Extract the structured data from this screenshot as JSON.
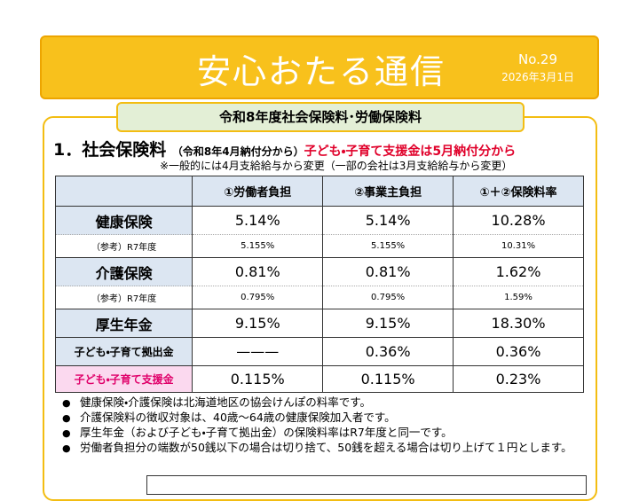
{
  "header": {
    "title": "安心おたる通信",
    "number": "No.29",
    "date": "2026年3月1日"
  },
  "section": {
    "title": "令和8年度社会保険料･労働保険料"
  },
  "heading": {
    "number": "1．",
    "title": "社会保険料",
    "period": "（令和8年4月納付分から）",
    "notice": "子ども・子育て支援金は5月納付分から"
  },
  "note": "※一般的には4月支給給与から変更（一部の会社は3月支給給与から変更）",
  "table": {
    "headers": [
      "①労働者負担",
      "②事業主負担",
      "①＋②保険料率"
    ],
    "rows": [
      {
        "label": "健康保険",
        "values": [
          "5.14%",
          "5.14%",
          "10.28%"
        ],
        "reference": {
          "label": "（参考）R7年度",
          "values": [
            "5.155%",
            "5.155%",
            "10.31%"
          ]
        }
      },
      {
        "label": "介護保険",
        "values": [
          "0.81%",
          "0.81%",
          "1.62%"
        ],
        "reference": {
          "label": "（参考）R7年度",
          "values": [
            "0.795%",
            "0.795%",
            "1.59%"
          ]
        }
      },
      {
        "label": "厚生年金",
        "values": [
          "9.15%",
          "9.15%",
          "18.30%"
        ]
      },
      {
        "label": "子ども・子育て拠出金",
        "values": [
          "———",
          "0.36%",
          "0.36%"
        ]
      },
      {
        "label": "子ども・子育て支援金",
        "values": [
          "0.115%",
          "0.115%",
          "0.23%"
        ]
      }
    ]
  },
  "bullets": [
    "健康保険・介護保険は北海道地区の協会けんぽの料率です。",
    "介護保険料の徴収対象は、40歳～64歳の健康保険加入者です。",
    "厚生年金（および子ども・子育て拠出金）の保険料率はR7年度と同一です。",
    "労働者負担分の端数が50銭以下の場合は切り捨て、50銭を超える場合は切り上げて１円とします。"
  ]
}
